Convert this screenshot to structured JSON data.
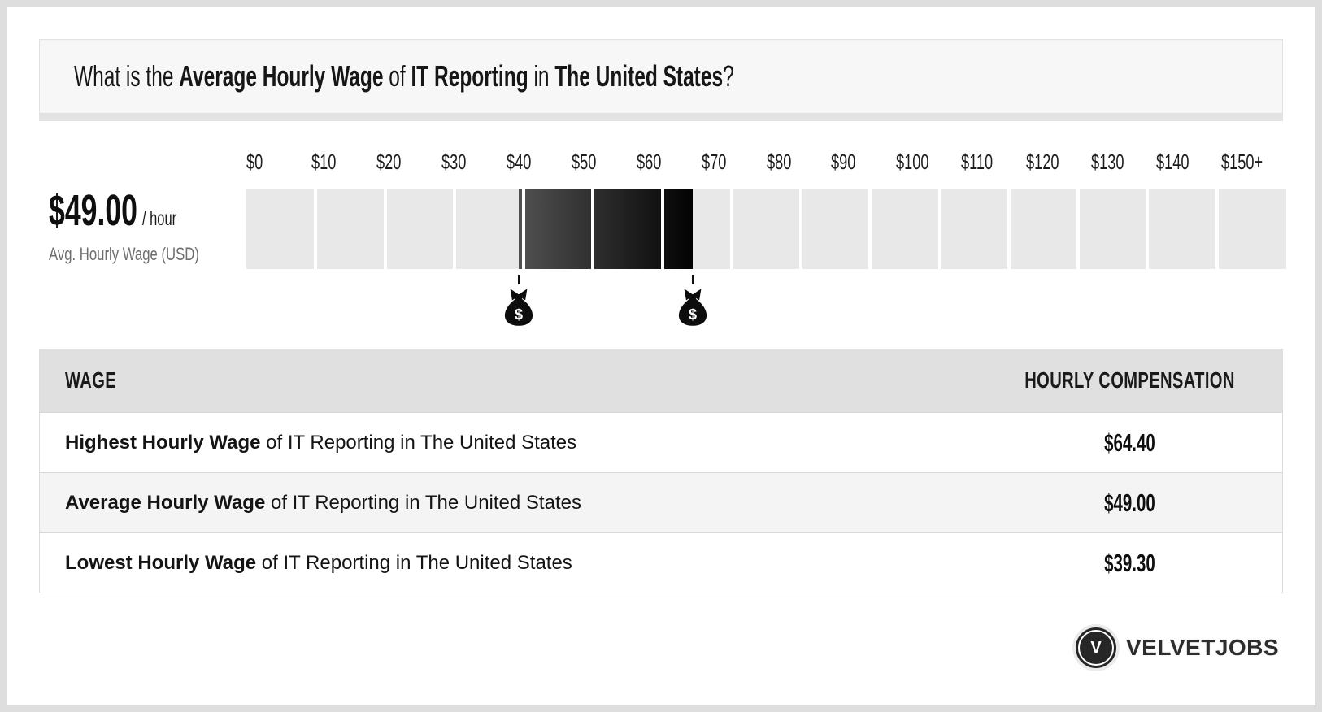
{
  "header": {
    "question": {
      "prefix": "What is the ",
      "term1": "Average Hourly Wage",
      "mid1": " of ",
      "term2": "IT Reporting",
      "mid2": " in ",
      "term3": "The United States",
      "suffix": "?"
    }
  },
  "stat": {
    "value": "$49.00",
    "unit": "/ hour",
    "caption": "Avg. Hourly Wage (USD)"
  },
  "chart_data": {
    "type": "range-bar",
    "title": "Hourly wage scale",
    "axis": {
      "min": 0,
      "max": 150,
      "tick_interval": 10,
      "tick_labels": [
        "$0",
        "$10",
        "$20",
        "$30",
        "$40",
        "$50",
        "$60",
        "$70",
        "$80",
        "$90",
        "$100",
        "$110",
        "$120",
        "$130",
        "$140",
        "$150+"
      ]
    },
    "segments": 15,
    "highlight": {
      "low": 39.3,
      "high": 64.4
    },
    "markers": [
      39.3,
      64.4
    ],
    "values": {
      "lowest": 39.3,
      "average": 49.0,
      "highest": 64.4
    },
    "colors": {
      "track": "#e8e8e8",
      "highlight_start": "#515151",
      "highlight_end": "#020202",
      "marker": "#0d0d0d"
    }
  },
  "table": {
    "headers": [
      "WAGE",
      "HOURLY COMPENSATION"
    ],
    "rows": [
      {
        "bold": "Highest Hourly Wage",
        "rest": " of IT Reporting in The United States",
        "value": "$64.40"
      },
      {
        "bold": "Average Hourly Wage",
        "rest": " of IT Reporting in The United States",
        "value": "$49.00"
      },
      {
        "bold": "Lowest Hourly Wage",
        "rest": " of IT Reporting in The United States",
        "value": "$39.30"
      }
    ]
  },
  "footer": {
    "brand": "VELVETJOBS",
    "logo_initial": "V"
  }
}
